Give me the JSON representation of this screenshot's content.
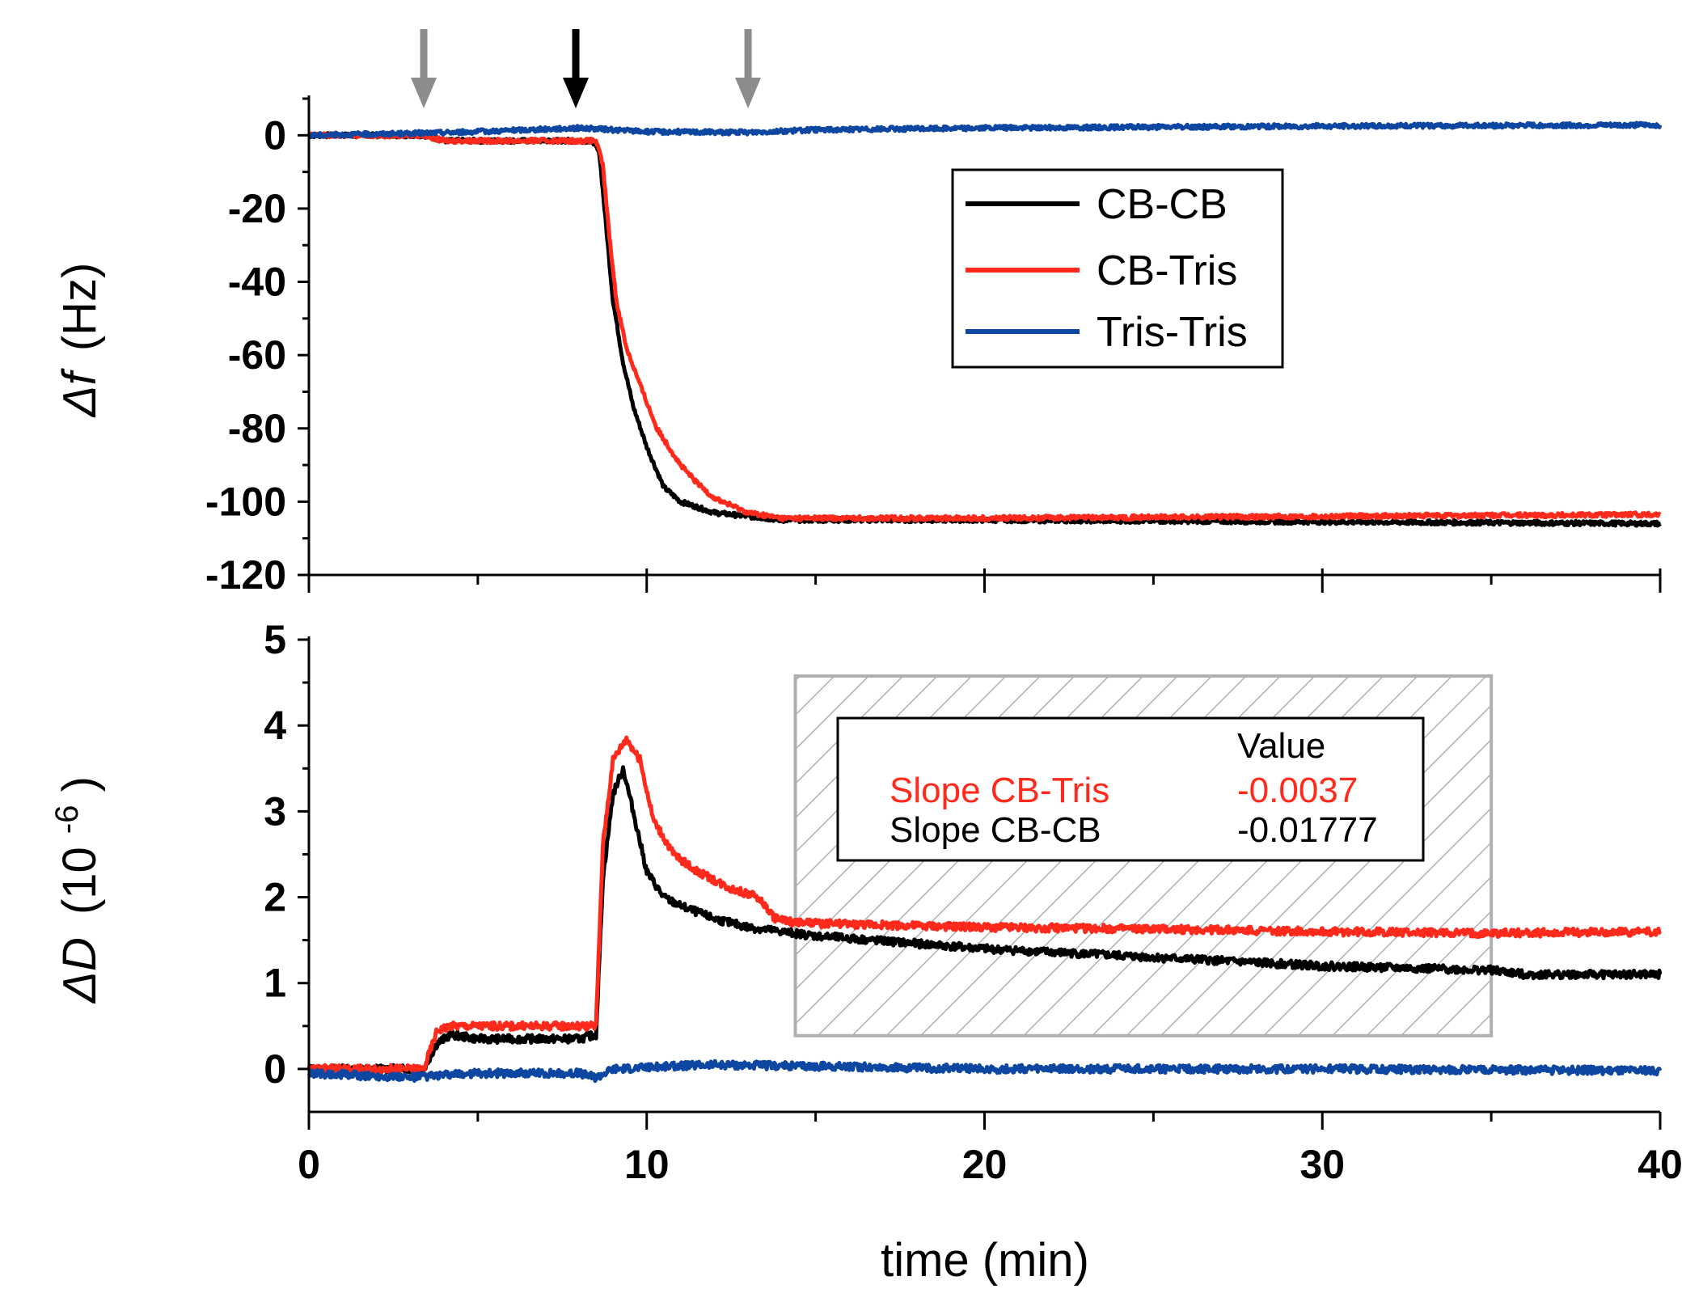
{
  "chart_data": [
    {
      "type": "line",
      "ylabel_symbol": "Δf",
      "ylabel_unit": "(Hz)",
      "xlim": [
        0,
        40
      ],
      "ylim": [
        -120,
        10
      ],
      "yticks": [
        0,
        -20,
        -40,
        -60,
        -80,
        -100,
        -120
      ],
      "xticks": [
        0,
        10,
        20,
        30,
        40
      ],
      "grid": false,
      "legend_position": "top-right",
      "arrows": [
        {
          "x": 3.4,
          "color": "#8c8c8c"
        },
        {
          "x": 7.9,
          "color": "#000000"
        },
        {
          "x": 13.0,
          "color": "#8c8c8c"
        }
      ],
      "series": [
        {
          "name": "CB-CB",
          "color": "#000000",
          "points": [
            [
              0,
              0
            ],
            [
              3.4,
              0
            ],
            [
              4,
              -1.5
            ],
            [
              8,
              -1.5
            ],
            [
              8.4,
              -1.5
            ],
            [
              8.6,
              -5
            ],
            [
              8.8,
              -25
            ],
            [
              9,
              -45
            ],
            [
              9.3,
              -62
            ],
            [
              9.6,
              -74
            ],
            [
              10,
              -85
            ],
            [
              10.5,
              -96
            ],
            [
              11,
              -100
            ],
            [
              12,
              -103
            ],
            [
              13,
              -104
            ],
            [
              14,
              -105
            ],
            [
              20,
              -105
            ],
            [
              30,
              -105.5
            ],
            [
              40,
              -106
            ]
          ]
        },
        {
          "name": "CB-Tris",
          "color": "#ff2a1c",
          "points": [
            [
              0,
              0
            ],
            [
              3.4,
              0
            ],
            [
              4,
              -1.5
            ],
            [
              8,
              -1.5
            ],
            [
              8.5,
              -1.5
            ],
            [
              8.7,
              -8
            ],
            [
              8.9,
              -28
            ],
            [
              9.1,
              -45
            ],
            [
              9.4,
              -58
            ],
            [
              9.8,
              -68
            ],
            [
              10.3,
              -80
            ],
            [
              11,
              -90
            ],
            [
              11.5,
              -95
            ],
            [
              12,
              -99
            ],
            [
              13,
              -103
            ],
            [
              14,
              -104.5
            ],
            [
              20,
              -104.5
            ],
            [
              30,
              -104
            ],
            [
              40,
              -103.5
            ]
          ]
        },
        {
          "name": "Tris-Tris",
          "color": "#0d47a1",
          "points": [
            [
              0,
              0
            ],
            [
              3,
              0.5
            ],
            [
              5,
              1
            ],
            [
              8,
              2
            ],
            [
              10,
              1
            ],
            [
              13,
              0.8
            ],
            [
              15,
              1.5
            ],
            [
              20,
              2
            ],
            [
              30,
              2.5
            ],
            [
              40,
              2.8
            ]
          ]
        }
      ]
    },
    {
      "type": "line",
      "xlabel": "time (min)",
      "ylabel_symbol": "ΔD",
      "ylabel_unit": "(10",
      "ylabel_exp": "-6",
      "ylabel_close": ")",
      "xlim": [
        0,
        40
      ],
      "ylim": [
        -0.5,
        5
      ],
      "yticks": [
        0,
        1,
        2,
        3,
        4,
        5
      ],
      "xticks": [
        0,
        10,
        20,
        30,
        40
      ],
      "grid": false,
      "fit_region": {
        "x": [
          14.4,
          35
        ]
      },
      "series": [
        {
          "name": "CB-CB",
          "color": "#000000",
          "points": [
            [
              0,
              0
            ],
            [
              3.4,
              0
            ],
            [
              3.8,
              0.3
            ],
            [
              4.2,
              0.4
            ],
            [
              5,
              0.35
            ],
            [
              8,
              0.35
            ],
            [
              8.5,
              0.4
            ],
            [
              8.7,
              2.2
            ],
            [
              9.0,
              3.2
            ],
            [
              9.3,
              3.5
            ],
            [
              9.6,
              3.0
            ],
            [
              10,
              2.3
            ],
            [
              10.5,
              2.0
            ],
            [
              11,
              1.9
            ],
            [
              12,
              1.75
            ],
            [
              13,
              1.65
            ],
            [
              14,
              1.6
            ],
            [
              15,
              1.55
            ],
            [
              20,
              1.4
            ],
            [
              25,
              1.3
            ],
            [
              30,
              1.2
            ],
            [
              35,
              1.15
            ],
            [
              36,
              1.1
            ],
            [
              40,
              1.1
            ]
          ]
        },
        {
          "name": "CB-Tris",
          "color": "#ff2a1c",
          "points": [
            [
              0,
              0
            ],
            [
              3.4,
              0
            ],
            [
              3.8,
              0.45
            ],
            [
              4.2,
              0.5
            ],
            [
              5,
              0.5
            ],
            [
              8,
              0.5
            ],
            [
              8.5,
              0.5
            ],
            [
              8.7,
              2.6
            ],
            [
              9.0,
              3.6
            ],
            [
              9.4,
              3.85
            ],
            [
              9.8,
              3.6
            ],
            [
              10.2,
              2.9
            ],
            [
              10.8,
              2.5
            ],
            [
              11.5,
              2.3
            ],
            [
              12.5,
              2.1
            ],
            [
              13.3,
              2.0
            ],
            [
              13.8,
              1.75
            ],
            [
              14.5,
              1.7
            ],
            [
              20,
              1.65
            ],
            [
              25,
              1.63
            ],
            [
              30,
              1.6
            ],
            [
              35,
              1.58
            ],
            [
              40,
              1.6
            ]
          ]
        },
        {
          "name": "Tris-Tris",
          "color": "#0d47a1",
          "points": [
            [
              0,
              -0.05
            ],
            [
              3,
              -0.1
            ],
            [
              5,
              -0.05
            ],
            [
              8,
              -0.05
            ],
            [
              8.5,
              -0.1
            ],
            [
              9,
              0
            ],
            [
              12,
              0.05
            ],
            [
              20,
              0
            ],
            [
              30,
              0
            ],
            [
              40,
              -0.02
            ]
          ]
        }
      ],
      "table": {
        "header": "Value",
        "rows": [
          {
            "label": "Slope CB-Tris",
            "value": "-0.0037",
            "color": "#ff2a1c"
          },
          {
            "label": "Slope CB-CB",
            "value": "-0.01777",
            "color": "#000000"
          }
        ]
      }
    }
  ]
}
